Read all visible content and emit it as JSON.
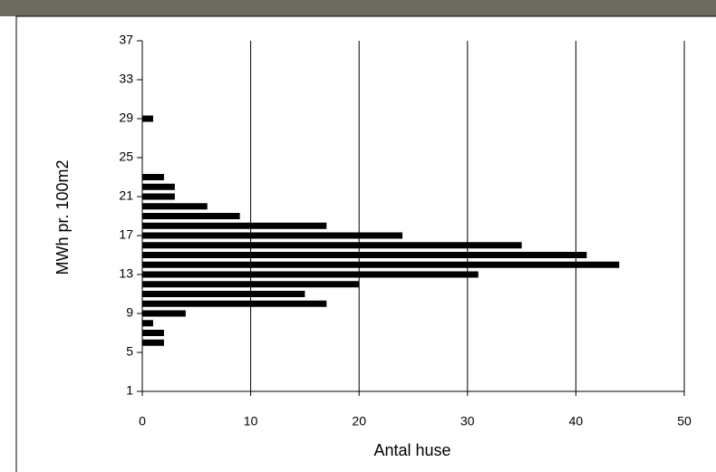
{
  "chart_data": {
    "type": "hbar",
    "x_label": "Antal huse",
    "y_label": "MWh pr. 100m2",
    "y": [
      6,
      7,
      8,
      9,
      10,
      11,
      12,
      13,
      14,
      15,
      16,
      17,
      18,
      19,
      20,
      21,
      22,
      23,
      29
    ],
    "values": [
      2,
      2,
      1,
      4,
      17,
      15,
      20,
      31,
      44,
      41,
      35,
      24,
      17,
      9,
      6,
      3,
      3,
      2,
      1
    ],
    "color": "#000000",
    "xlim": [
      0,
      50
    ],
    "xticks": [
      0,
      10,
      20,
      30,
      40,
      50
    ],
    "ylim": [
      1,
      37
    ],
    "yticks": [
      1,
      5,
      9,
      13,
      17,
      21,
      25,
      29,
      33,
      37
    ],
    "grid": true
  }
}
